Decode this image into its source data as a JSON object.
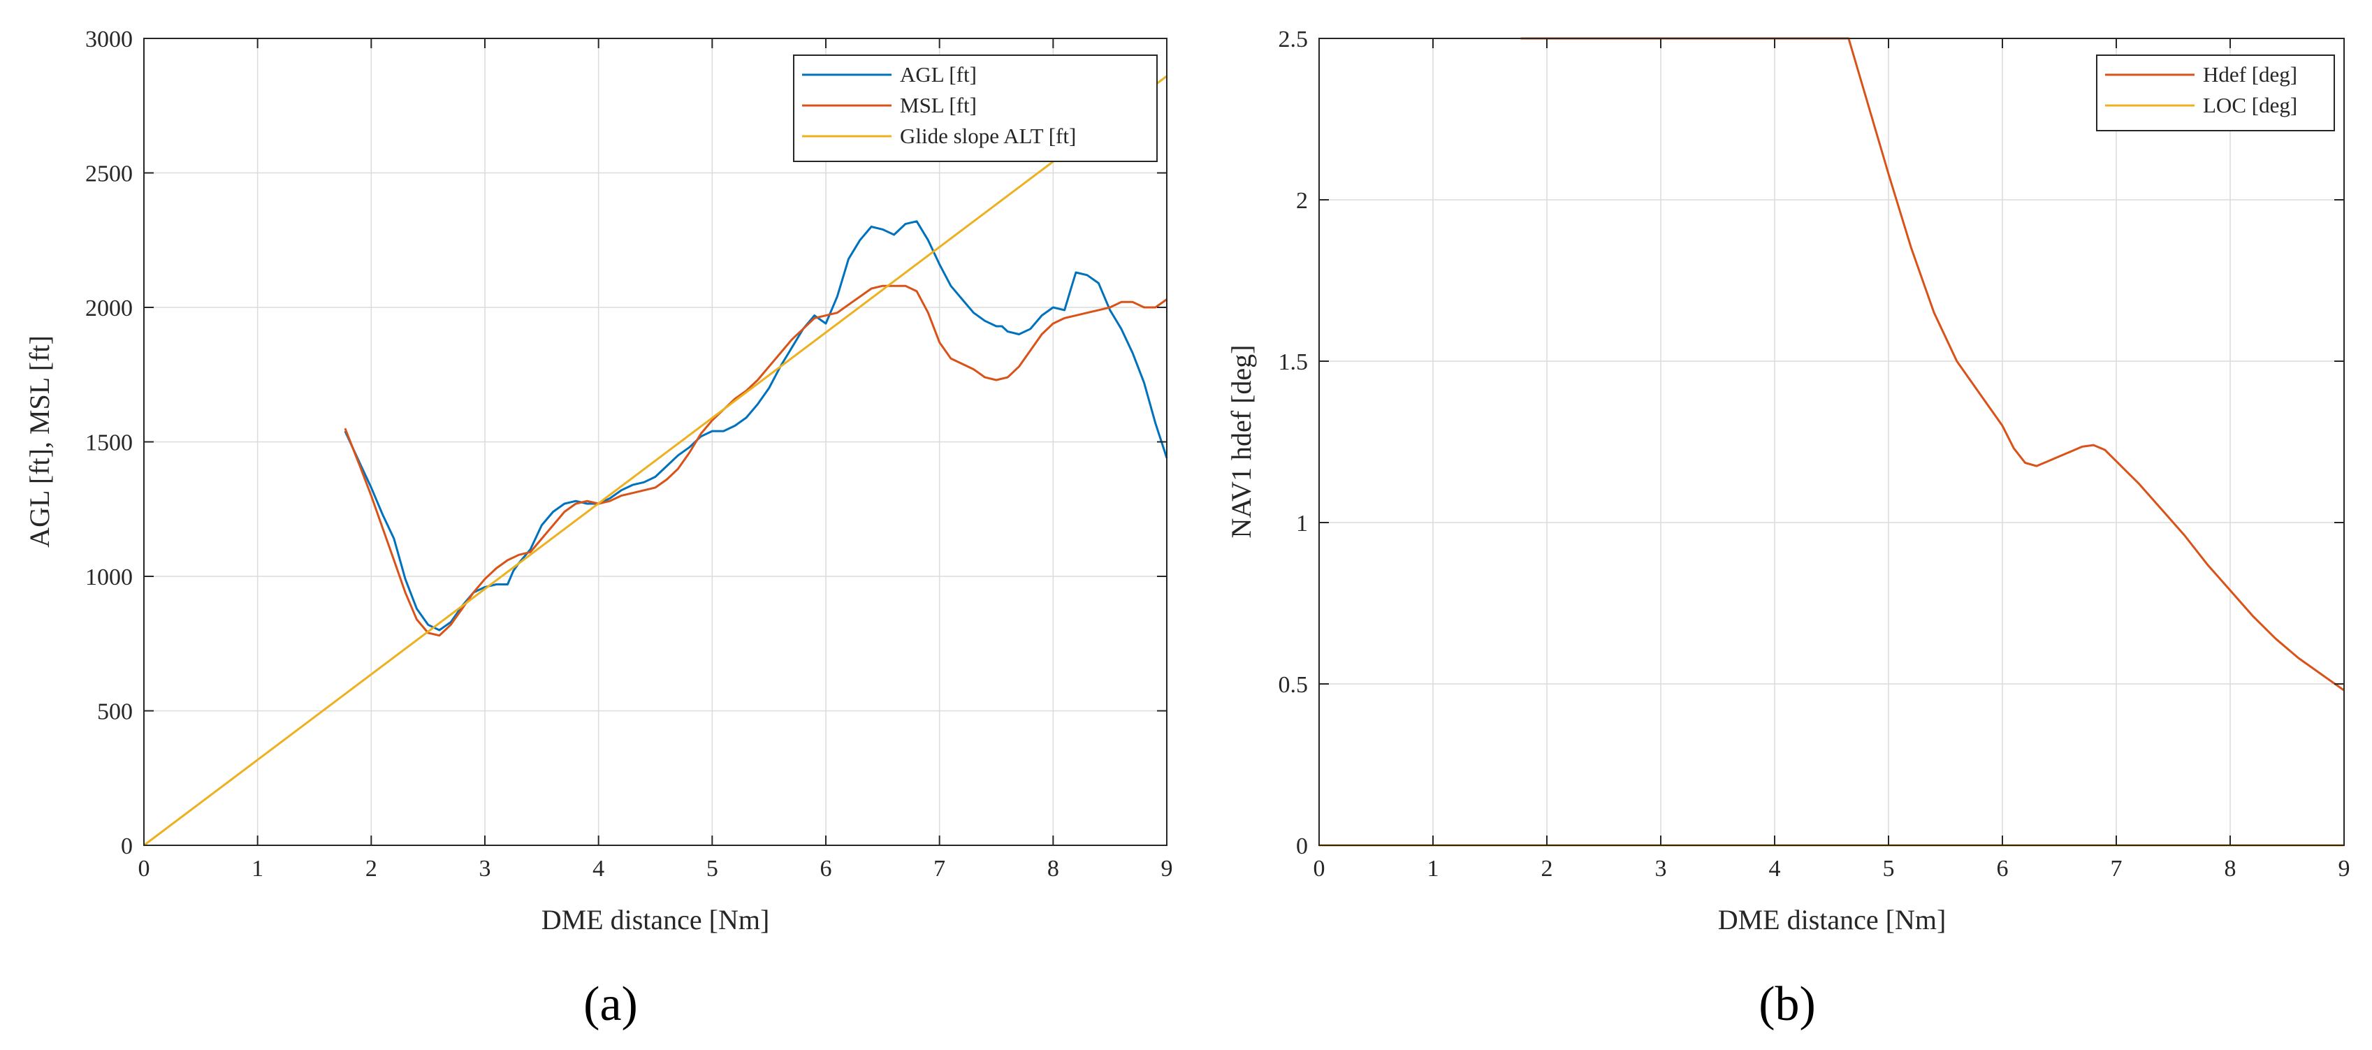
{
  "figure": {
    "panel_labels": [
      "(a)",
      "(b)"
    ]
  },
  "chart_data": [
    {
      "type": "line",
      "panel": "(a)",
      "xlabel": "DME distance [Nm]",
      "ylabel": "AGL [ft], MSL [ft]",
      "xlim": [
        0,
        9
      ],
      "ylim": [
        0,
        3000
      ],
      "xticks": [
        0,
        1,
        2,
        3,
        4,
        5,
        6,
        7,
        8,
        9
      ],
      "yticks": [
        0,
        500,
        1000,
        1500,
        2000,
        2500,
        3000
      ],
      "grid": true,
      "legend": "top-right",
      "series": [
        {
          "name": "AGL [ft]",
          "color": "#0072BD",
          "x": [
            1.77,
            1.9,
            2.0,
            2.1,
            2.2,
            2.3,
            2.4,
            2.5,
            2.6,
            2.7,
            2.8,
            2.9,
            3.0,
            3.1,
            3.2,
            3.25,
            3.3,
            3.4,
            3.5,
            3.6,
            3.7,
            3.8,
            3.9,
            4.0,
            4.1,
            4.2,
            4.3,
            4.4,
            4.5,
            4.6,
            4.7,
            4.8,
            4.9,
            5.0,
            5.1,
            5.2,
            5.3,
            5.4,
            5.5,
            5.6,
            5.7,
            5.8,
            5.9,
            6.0,
            6.1,
            6.2,
            6.3,
            6.4,
            6.5,
            6.6,
            6.7,
            6.8,
            6.9,
            7.0,
            7.1,
            7.2,
            7.3,
            7.4,
            7.5,
            7.55,
            7.6,
            7.7,
            7.8,
            7.9,
            8.0,
            8.1,
            8.15,
            8.2,
            8.3,
            8.4,
            8.5,
            8.6,
            8.7,
            8.8,
            8.9,
            9.0
          ],
          "values": [
            1540,
            1420,
            1330,
            1230,
            1140,
            990,
            880,
            820,
            800,
            830,
            890,
            940,
            960,
            970,
            970,
            1020,
            1050,
            1100,
            1190,
            1240,
            1270,
            1280,
            1270,
            1270,
            1290,
            1320,
            1340,
            1350,
            1370,
            1410,
            1450,
            1480,
            1520,
            1540,
            1540,
            1560,
            1590,
            1640,
            1700,
            1780,
            1850,
            1920,
            1970,
            1940,
            2040,
            2180,
            2250,
            2300,
            2290,
            2270,
            2310,
            2320,
            2250,
            2160,
            2080,
            2030,
            1980,
            1950,
            1930,
            1930,
            1910,
            1900,
            1920,
            1970,
            2000,
            1990,
            2060,
            2130,
            2120,
            2090,
            1990,
            1920,
            1830,
            1720,
            1570,
            1440
          ]
        },
        {
          "name": "MSL [ft]",
          "color": "#D95319",
          "x": [
            1.77,
            1.9,
            2.0,
            2.1,
            2.2,
            2.3,
            2.4,
            2.5,
            2.6,
            2.7,
            2.8,
            2.9,
            3.0,
            3.1,
            3.2,
            3.3,
            3.4,
            3.5,
            3.6,
            3.7,
            3.8,
            3.9,
            4.0,
            4.1,
            4.2,
            4.3,
            4.4,
            4.5,
            4.6,
            4.7,
            4.8,
            4.9,
            5.0,
            5.1,
            5.2,
            5.3,
            5.4,
            5.5,
            5.6,
            5.7,
            5.8,
            5.9,
            6.0,
            6.1,
            6.2,
            6.3,
            6.4,
            6.5,
            6.6,
            6.7,
            6.8,
            6.9,
            7.0,
            7.1,
            7.2,
            7.3,
            7.4,
            7.5,
            7.6,
            7.7,
            7.8,
            7.9,
            8.0,
            8.1,
            8.2,
            8.3,
            8.4,
            8.5,
            8.6,
            8.7,
            8.8,
            8.9,
            9.0
          ],
          "values": [
            1550,
            1410,
            1300,
            1180,
            1060,
            940,
            840,
            790,
            780,
            820,
            880,
            940,
            990,
            1030,
            1060,
            1080,
            1090,
            1140,
            1190,
            1240,
            1270,
            1280,
            1270,
            1280,
            1300,
            1310,
            1320,
            1330,
            1360,
            1400,
            1460,
            1530,
            1580,
            1620,
            1660,
            1690,
            1730,
            1780,
            1830,
            1880,
            1920,
            1960,
            1970,
            1980,
            2010,
            2040,
            2070,
            2080,
            2080,
            2080,
            2060,
            1980,
            1870,
            1810,
            1790,
            1770,
            1740,
            1730,
            1740,
            1780,
            1840,
            1900,
            1940,
            1960,
            1970,
            1980,
            1990,
            2000,
            2020,
            2020,
            2000,
            2000,
            2030
          ]
        },
        {
          "name": "Glide slope ALT [ft]",
          "color": "#EDB120",
          "x": [
            0,
            9
          ],
          "values": [
            0,
            2860
          ]
        }
      ]
    },
    {
      "type": "line",
      "panel": "(b)",
      "xlabel": "DME distance [Nm]",
      "ylabel": "NAV1 hdef [deg]",
      "xlim": [
        0,
        9
      ],
      "ylim": [
        0,
        2.5
      ],
      "xticks": [
        0,
        1,
        2,
        3,
        4,
        5,
        6,
        7,
        8,
        9
      ],
      "yticks": [
        0,
        0.5,
        1,
        1.5,
        2,
        2.5
      ],
      "grid": true,
      "legend": "top-right",
      "series": [
        {
          "name": "Hdef [deg]",
          "color": "#D95319",
          "x": [
            1.77,
            2.0,
            3.0,
            4.0,
            4.65,
            4.8,
            5.0,
            5.2,
            5.4,
            5.6,
            5.8,
            6.0,
            6.1,
            6.2,
            6.3,
            6.4,
            6.5,
            6.6,
            6.7,
            6.8,
            6.9,
            7.0,
            7.2,
            7.4,
            7.6,
            7.8,
            8.0,
            8.2,
            8.4,
            8.6,
            8.8,
            9.0
          ],
          "values": [
            2.5,
            2.5,
            2.5,
            2.5,
            2.5,
            2.32,
            2.08,
            1.85,
            1.65,
            1.5,
            1.4,
            1.3,
            1.23,
            1.185,
            1.175,
            1.19,
            1.205,
            1.22,
            1.235,
            1.24,
            1.225,
            1.19,
            1.12,
            1.04,
            0.96,
            0.87,
            0.79,
            0.71,
            0.64,
            0.58,
            0.53,
            0.48
          ]
        },
        {
          "name": "LOC [deg]",
          "color": "#EDB120",
          "x": [
            0,
            9
          ],
          "values": [
            0,
            0
          ]
        }
      ]
    }
  ]
}
